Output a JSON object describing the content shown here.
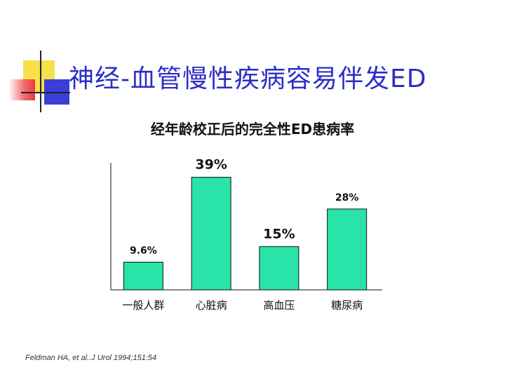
{
  "slide": {
    "title": "神经-血管慢性疾病容易伴发ED",
    "footnote": "Feldman HA, et al..J Urol 1994;151:54"
  },
  "colors": {
    "bar": "#29e3a8",
    "title": "#2d2dc8"
  },
  "chart_data": {
    "type": "bar",
    "title": "经年龄校正后的完全性ED患病率",
    "categories": [
      "一般人群",
      "心脏病",
      "高血压",
      "糖尿病"
    ],
    "values": [
      9.6,
      39,
      15,
      28
    ],
    "data_labels": [
      "9.6%",
      "39%",
      "15%",
      "28%"
    ],
    "xlabel": "",
    "ylabel": "",
    "ylim": [
      0,
      44
    ],
    "grid": false
  }
}
